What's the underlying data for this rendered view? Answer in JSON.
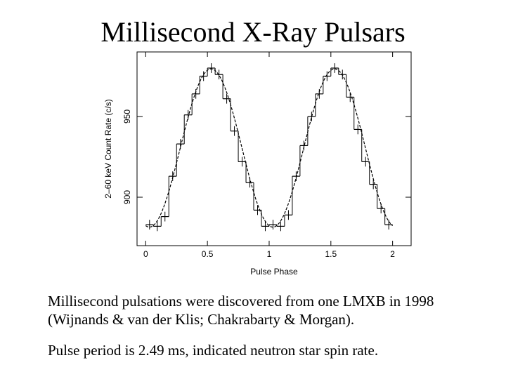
{
  "title": "Millisecond X-Ray Pulsars",
  "captions": [
    "Millisecond pulsations were discovered from one LMXB in 1998 (Wijnands & van der Klis; Chakrabarty & Morgan).",
    "Pulse period is 2.49 ms, indicated neutron star spin rate."
  ],
  "chart_data": {
    "type": "line",
    "xlabel": "Pulse Phase",
    "ylabel": "2–60 keV Count Rate (c/s)",
    "xlim": [
      -0.07,
      2.15
    ],
    "ylim": [
      870,
      990
    ],
    "xticks": [
      0,
      0.5,
      1,
      1.5,
      2
    ],
    "xtick_labels": [
      "0",
      "0.5",
      "1",
      "1.5",
      "2"
    ],
    "yticks": [
      900,
      950
    ],
    "ytick_labels": [
      "900",
      "950"
    ],
    "grid": false,
    "series": [
      {
        "style": "histogram-step-with-error-bars",
        "bin_width": 0.0625,
        "x": [
          0.03125,
          0.09375,
          0.15625,
          0.21875,
          0.28125,
          0.34375,
          0.40625,
          0.46875,
          0.53125,
          0.59375,
          0.65625,
          0.71875,
          0.78125,
          0.84375,
          0.90625,
          0.96875,
          1.03125,
          1.09375,
          1.15625,
          1.21875,
          1.28125,
          1.34375,
          1.40625,
          1.46875,
          1.53125,
          1.59375,
          1.65625,
          1.71875,
          1.78125,
          1.84375,
          1.90625,
          1.96875
        ],
        "y": [
          883,
          882,
          888,
          913,
          933,
          951,
          964,
          975,
          980,
          976,
          961,
          941,
          922,
          909,
          892,
          882,
          883,
          882,
          889,
          913,
          932,
          950,
          964,
          975,
          980,
          976,
          962,
          942,
          922,
          908,
          893,
          883
        ],
        "yerr": 3
      },
      {
        "style": "dashed-sine-fit",
        "mean": 930.5,
        "amplitude": 49,
        "phase_of_peak": 0.53,
        "period": 1
      }
    ]
  }
}
